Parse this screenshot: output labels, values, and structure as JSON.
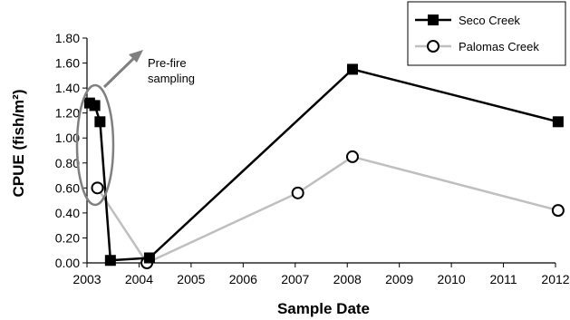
{
  "chart_data": {
    "type": "line",
    "xlabel": "Sample Date",
    "ylabel": "CPUE (fish/m²)",
    "xlim": [
      2003,
      2012
    ],
    "ylim": [
      0,
      1.8
    ],
    "x_ticks": [
      "2003",
      "2004",
      "2005",
      "2006",
      "2007",
      "2008",
      "2009",
      "2010",
      "2011",
      "2012"
    ],
    "y_ticks": [
      "0.00",
      "0.20",
      "0.40",
      "0.60",
      "0.80",
      "1.00",
      "1.20",
      "1.40",
      "1.60",
      "1.80"
    ],
    "grid": false,
    "legend_position": "top-right",
    "series": [
      {
        "name": "Seco Creek",
        "color": "#000000",
        "marker": "filled-square",
        "x": [
          2003.05,
          2003.15,
          2003.25,
          2003.45,
          2004.2,
          2008.1,
          2012.05
        ],
        "y": [
          1.28,
          1.26,
          1.13,
          0.02,
          0.04,
          1.55,
          1.13
        ]
      },
      {
        "name": "Palomas Creek",
        "color": "#bfbfbf",
        "marker": "open-circle",
        "x": [
          2003.2,
          2004.15,
          2007.05,
          2008.1,
          2012.05
        ],
        "y": [
          0.6,
          0.0,
          0.56,
          0.85,
          0.42
        ]
      }
    ],
    "annotation": {
      "text_line1": "Pre-fire",
      "text_line2": "sampling",
      "color": "#808080"
    }
  }
}
